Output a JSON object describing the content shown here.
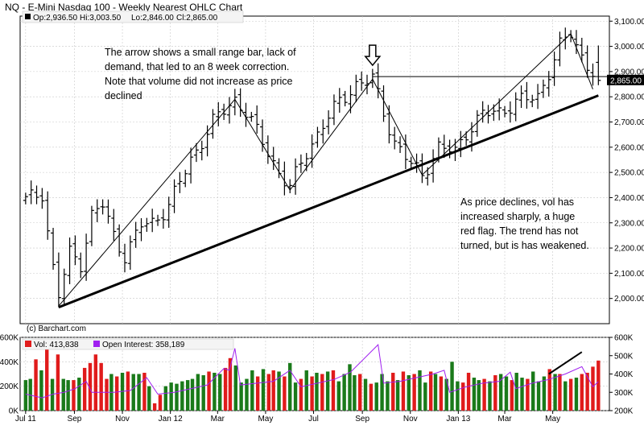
{
  "window": {
    "title": "NQ - E-Mini Nasdaq 100 - Weekly Nearest OHLC Chart"
  },
  "quote": {
    "open": "Op:2,936.50",
    "high": "Hi:3,003.50",
    "low": "Lo:2,846.00",
    "close": "Cl:2,865.00"
  },
  "last_price_label": "2,865.00",
  "copyright": "(c) Barchart.com",
  "annotations": {
    "top_left": [
      "The arrow shows a small range bar, lack of",
      "demand, that led to an 8 week correction.",
      "Note that volume did not increase as price",
      "declined"
    ],
    "right": [
      "As price declines, vol has",
      "increased sharply, a huge",
      "red flag.  The trend has not",
      "turned, but is has weakened."
    ]
  },
  "colors": {
    "up_volume": "#1a7a1a",
    "down_volume": "#e01b1b",
    "open_interest": "#a020f0",
    "price_bar": "#000000",
    "grid": "#c8c8c8"
  },
  "chart_data": [
    {
      "type": "ohlc",
      "title": "NQ - E-Mini Nasdaq 100 - Weekly Nearest OHLC Chart",
      "period": "weekly",
      "x_tick_labels": [
        "Jul 11",
        "Sep",
        "Nov",
        "Jan 12",
        "Mar",
        "May",
        "Jul",
        "Sep",
        "Nov",
        "Jan 13",
        "Mar",
        "May"
      ],
      "y_tick_labels": [
        "2,000.00",
        "2,100.00",
        "2,200.00",
        "2,300.00",
        "2,400.00",
        "2,500.00",
        "2,600.00",
        "2,700.00",
        "2,800.00",
        "2,900.00",
        "3,000.00",
        "3,100.00"
      ],
      "ylim": [
        1900,
        3120
      ],
      "grid": true,
      "series": [
        {
          "close_path": [
            [
              "2011-07-01",
              2390
            ],
            [
              "2011-07-22",
              2420
            ],
            [
              "2011-08-05",
              2120
            ],
            [
              "2011-08-12",
              2010
            ],
            [
              "2011-08-26",
              2180
            ],
            [
              "2011-09-09",
              2140
            ],
            [
              "2011-09-23",
              2330
            ],
            [
              "2011-10-07",
              2370
            ],
            [
              "2011-10-21",
              2250
            ],
            [
              "2011-11-04",
              2170
            ],
            [
              "2011-11-25",
              2290
            ],
            [
              "2011-12-09",
              2300
            ],
            [
              "2011-12-30",
              2370
            ],
            [
              "2012-01-27",
              2550
            ],
            [
              "2012-02-24",
              2700
            ],
            [
              "2012-03-23",
              2790
            ],
            [
              "2012-04-06",
              2740
            ],
            [
              "2012-04-27",
              2620
            ],
            [
              "2012-05-18",
              2500
            ],
            [
              "2012-06-01",
              2440
            ],
            [
              "2012-06-22",
              2580
            ],
            [
              "2012-07-13",
              2690
            ],
            [
              "2012-08-03",
              2780
            ],
            [
              "2012-08-24",
              2850
            ],
            [
              "2012-09-14",
              2870
            ],
            [
              "2012-09-28",
              2740
            ],
            [
              "2012-10-12",
              2620
            ],
            [
              "2012-11-02",
              2530
            ],
            [
              "2012-11-16",
              2490
            ],
            [
              "2012-12-07",
              2600
            ],
            [
              "2012-12-28",
              2580
            ],
            [
              "2013-01-11",
              2660
            ],
            [
              "2013-02-01",
              2730
            ],
            [
              "2013-02-22",
              2740
            ],
            [
              "2013-03-15",
              2780
            ],
            [
              "2013-04-12",
              2800
            ],
            [
              "2013-04-26",
              2900
            ],
            [
              "2013-05-10",
              3000
            ],
            [
              "2013-05-24",
              3050
            ],
            [
              "2013-06-07",
              2960
            ],
            [
              "2013-06-28",
              2865
            ]
          ],
          "last": {
            "open": 2936.5,
            "high": 3003.5,
            "low": 2846.0,
            "close": 2865.0
          }
        }
      ],
      "horizontal_line": 2880,
      "arrow_marker": {
        "x": "2012-09-14",
        "y": 2960
      },
      "trend_lines": [
        {
          "name": "long-term-support",
          "from": [
            "2011-08-12",
            1965
          ],
          "to": [
            "2013-06-28",
            2805
          ]
        },
        {
          "name": "rally-1",
          "from": [
            "2011-08-12",
            1970
          ],
          "to": [
            "2012-03-23",
            2790
          ]
        },
        {
          "name": "drop-1",
          "from": [
            "2012-03-23",
            2790
          ],
          "to": [
            "2012-06-01",
            2430
          ]
        },
        {
          "name": "rally-2",
          "from": [
            "2012-06-01",
            2430
          ],
          "to": [
            "2012-09-14",
            2870
          ]
        },
        {
          "name": "drop-2",
          "from": [
            "2012-09-14",
            2870
          ],
          "to": [
            "2012-11-16",
            2490
          ]
        },
        {
          "name": "rally-3",
          "from": [
            "2012-11-16",
            2490
          ],
          "to": [
            "2013-05-24",
            3050
          ]
        },
        {
          "name": "drop-3",
          "from": [
            "2013-05-24",
            3050
          ],
          "to": [
            "2013-06-21",
            2830
          ]
        }
      ]
    },
    {
      "type": "bar",
      "legend": [
        "Vol: 413,838",
        "Open Interest: 358,189"
      ],
      "left_y_tick_labels": [
        "0K",
        "200K",
        "400K",
        "600K"
      ],
      "right_y_tick_labels": [
        "200K",
        "300K",
        "400K",
        "500K",
        "600K"
      ],
      "left_ylim": [
        0,
        600000
      ],
      "right_ylim": [
        200000,
        600000
      ],
      "volume": [
        250000,
        260000,
        420000,
        330000,
        540000,
        260000,
        460000,
        260000,
        250000,
        250000,
        270000,
        350000,
        390000,
        460000,
        390000,
        260000,
        300000,
        280000,
        310000,
        320000,
        300000,
        300000,
        310000,
        200000,
        60000,
        130000,
        200000,
        230000,
        220000,
        240000,
        250000,
        260000,
        300000,
        290000,
        320000,
        310000,
        300000,
        350000,
        430000,
        370000,
        230000,
        260000,
        330000,
        280000,
        340000,
        300000,
        330000,
        320000,
        280000,
        390000,
        230000,
        260000,
        330000,
        280000,
        310000,
        300000,
        320000,
        330000,
        240000,
        300000,
        380000,
        290000,
        300000,
        260000,
        220000,
        230000,
        300000,
        240000,
        310000,
        250000,
        320000,
        290000,
        300000,
        330000,
        230000,
        320000,
        300000,
        280000,
        260000,
        400000,
        240000,
        230000,
        310000,
        270000,
        250000,
        260000,
        240000,
        290000,
        300000,
        280000,
        250000,
        310000,
        270000,
        260000,
        320000,
        240000,
        280000,
        340000,
        300000,
        300000,
        240000,
        260000,
        270000,
        300000,
        310000,
        360000,
        410000
      ],
      "volume_up": [
        1,
        1,
        0,
        1,
        0,
        1,
        0,
        1,
        1,
        0,
        1,
        0,
        0,
        0,
        0,
        0,
        1,
        0,
        1,
        0,
        1,
        1,
        0,
        1,
        0,
        0,
        1,
        1,
        1,
        1,
        1,
        1,
        1,
        1,
        0,
        1,
        1,
        0,
        0,
        1,
        1,
        1,
        1,
        0,
        1,
        0,
        0,
        1,
        0,
        1,
        1,
        0,
        1,
        0,
        1,
        0,
        1,
        0,
        1,
        1,
        1,
        1,
        0,
        1,
        0,
        1,
        1,
        1,
        0,
        1,
        0,
        1,
        0,
        1,
        1,
        0,
        1,
        0,
        1,
        1,
        1,
        0,
        0,
        1,
        1,
        0,
        1,
        0,
        1,
        1,
        0,
        1,
        1,
        0,
        1,
        1,
        1,
        0,
        1,
        0,
        1,
        0,
        1,
        0,
        0,
        0,
        0
      ],
      "open_interest": [
        [
          "2011-07-01",
          290000
        ],
        [
          "2011-07-22",
          270000
        ],
        [
          "2011-08-05",
          290000
        ],
        [
          "2011-08-19",
          300000
        ],
        [
          "2011-09-02",
          320000
        ],
        [
          "2011-09-16",
          360000
        ],
        [
          "2011-09-23",
          300000
        ],
        [
          "2011-10-21",
          300000
        ],
        [
          "2011-11-11",
          310000
        ],
        [
          "2011-12-02",
          380000
        ],
        [
          "2011-12-16",
          290000
        ],
        [
          "2012-01-06",
          300000
        ],
        [
          "2012-01-27",
          320000
        ],
        [
          "2012-02-17",
          340000
        ],
        [
          "2012-03-02",
          400000
        ],
        [
          "2012-03-09",
          430000
        ],
        [
          "2012-03-16",
          420000
        ],
        [
          "2012-03-23",
          540000
        ],
        [
          "2012-03-30",
          340000
        ],
        [
          "2012-04-20",
          350000
        ],
        [
          "2012-05-11",
          360000
        ],
        [
          "2012-06-01",
          420000
        ],
        [
          "2012-06-15",
          330000
        ],
        [
          "2012-07-06",
          350000
        ],
        [
          "2012-07-27",
          370000
        ],
        [
          "2012-08-17",
          410000
        ],
        [
          "2012-09-07",
          500000
        ],
        [
          "2012-09-21",
          560000
        ],
        [
          "2012-09-28",
          350000
        ],
        [
          "2012-10-19",
          360000
        ],
        [
          "2012-11-09",
          380000
        ],
        [
          "2012-11-30",
          400000
        ],
        [
          "2012-12-14",
          420000
        ],
        [
          "2012-12-21",
          300000
        ],
        [
          "2013-01-11",
          330000
        ],
        [
          "2013-02-01",
          350000
        ],
        [
          "2013-02-22",
          360000
        ],
        [
          "2013-03-08",
          410000
        ],
        [
          "2013-03-15",
          320000
        ],
        [
          "2013-04-05",
          350000
        ],
        [
          "2013-04-26",
          370000
        ],
        [
          "2013-05-17",
          400000
        ],
        [
          "2013-06-07",
          440000
        ],
        [
          "2013-06-21",
          330000
        ],
        [
          "2013-06-28",
          358189
        ]
      ],
      "trend_line": {
        "from": [
          "2013-04-26",
          400000
        ],
        "to": [
          "2013-06-07",
          520000
        ]
      }
    }
  ]
}
